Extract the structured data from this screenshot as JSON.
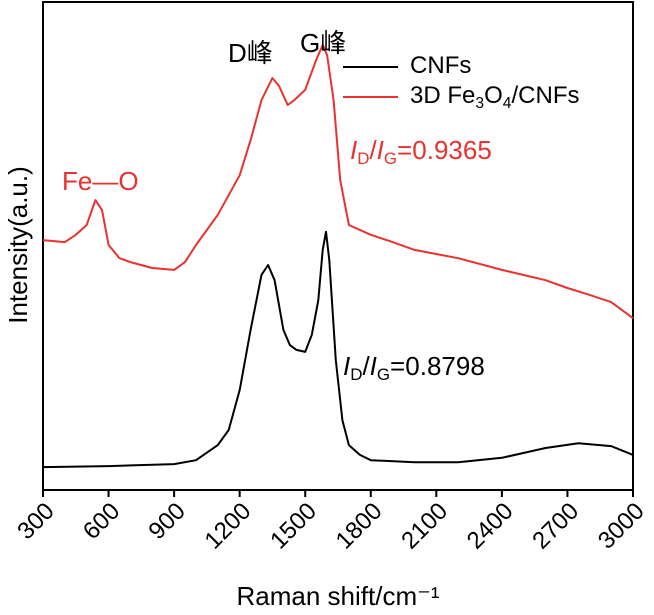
{
  "chart_data": {
    "type": "line",
    "x_label": "Raman shift/cm⁻¹",
    "y_label": "Intensity(a.u.)",
    "xlim": [
      300,
      3000
    ],
    "xticks": [
      300,
      600,
      900,
      1200,
      1500,
      1800,
      2100,
      2400,
      2700,
      3000
    ],
    "ylim": [
      0,
      100
    ],
    "grid": false,
    "legend": "upper right",
    "series": [
      {
        "name": "CNFs",
        "color": "#000000",
        "x": [
          300,
          600,
          900,
          1000,
          1100,
          1150,
          1200,
          1250,
          1300,
          1330,
          1360,
          1400,
          1430,
          1460,
          1500,
          1530,
          1560,
          1580,
          1595,
          1610,
          1640,
          1670,
          1700,
          1750,
          1800,
          2000,
          2200,
          2400,
          2600,
          2750,
          2900,
          3000
        ],
        "values": [
          4.7,
          4.9,
          5.3,
          6.1,
          9.2,
          12.3,
          20.5,
          32.8,
          44.1,
          46.1,
          43,
          32.8,
          29.7,
          28.7,
          28.3,
          31.8,
          38.9,
          49.2,
          52.9,
          47.1,
          26.6,
          14.3,
          9.2,
          7.2,
          6.1,
          5.7,
          5.7,
          6.6,
          8.6,
          9.6,
          9,
          7.2
        ]
      },
      {
        "name": "3D Fe3O4/CNFs",
        "color": "#e8322e",
        "x": [
          300,
          400,
          450,
          500,
          540,
          570,
          600,
          650,
          700,
          800,
          900,
          950,
          1000,
          1100,
          1200,
          1250,
          1300,
          1350,
          1380,
          1420,
          1450,
          1500,
          1550,
          1580,
          1600,
          1630,
          1660,
          1700,
          1800,
          1900,
          2000,
          2200,
          2400,
          2600,
          2700,
          2800,
          2900,
          3000
        ],
        "values": [
          51.2,
          50.8,
          52.3,
          54.3,
          59.4,
          57.4,
          50.2,
          47.5,
          46.7,
          45.5,
          45.1,
          46.7,
          50.2,
          56.4,
          64.5,
          71.7,
          79.9,
          84.4,
          82.8,
          78.9,
          79.9,
          82,
          88.1,
          91.2,
          89.1,
          79.9,
          63.5,
          54.3,
          52.3,
          50.8,
          49.2,
          47.5,
          45.1,
          43,
          41.4,
          40,
          38.5,
          35.2
        ]
      }
    ],
    "annotations": [
      {
        "text": "D峰",
        "color": "#000000"
      },
      {
        "text": "G峰",
        "color": "#000000"
      },
      {
        "text": "Fe—O",
        "color": "#e8322e"
      },
      {
        "text": "ID/IG=0.9365",
        "color": "#e8322e"
      },
      {
        "text": "ID/IG=0.8798",
        "color": "#000000"
      }
    ]
  }
}
